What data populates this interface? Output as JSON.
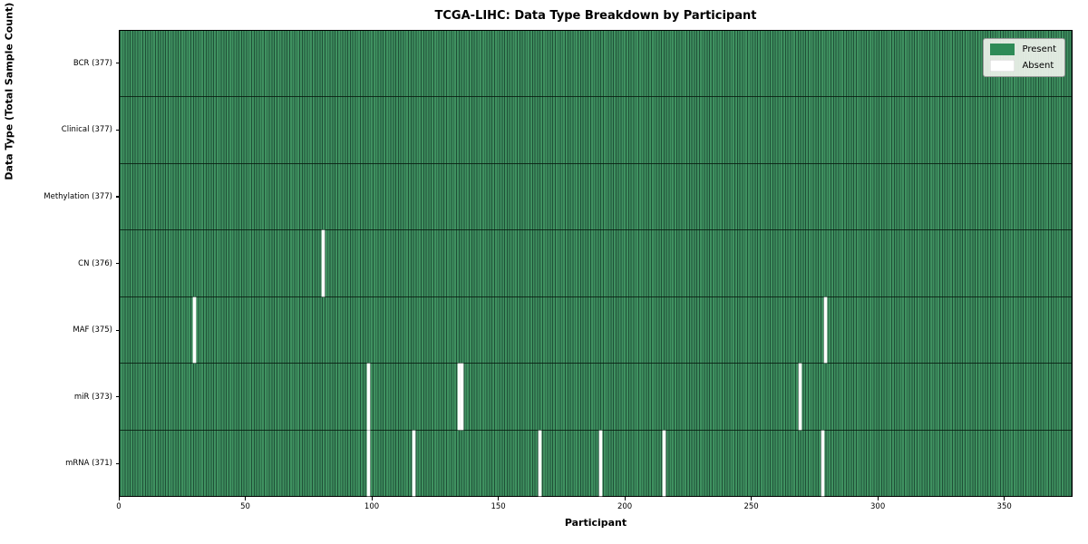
{
  "title": "TCGA-LIHC: Data Type Breakdown by Participant",
  "xlabel": "Participant",
  "ylabel": "Data Type (Total Sample Count)",
  "legend": {
    "present_label": "Present",
    "absent_label": "Absent"
  },
  "colors": {
    "present": "#2e8b57",
    "present_fill": "#3f9160",
    "cell_edge": "#1f5037",
    "row_divider": "#0a1c10",
    "absent": "#ffffff",
    "frame": "#000000",
    "legend_bg": "#eef2ec",
    "legend_border": "#9a9a9a"
  },
  "chart_data": {
    "type": "heatmap",
    "title": "TCGA-LIHC: Data Type Breakdown by Participant",
    "xlabel": "Participant",
    "ylabel": "Data Type (Total Sample Count)",
    "n_participants": 377,
    "x_range": [
      0,
      377
    ],
    "x_ticks": [
      0,
      50,
      100,
      150,
      200,
      250,
      300,
      350
    ],
    "grid": false,
    "legend_position": "upper right",
    "legend": [
      {
        "label": "Present",
        "color": "#2e8b57"
      },
      {
        "label": "Absent",
        "color": "#ffffff"
      }
    ],
    "rows": [
      {
        "data_type": "bcr",
        "label": "BCR (377)",
        "present_count": 377,
        "absent_count": 0,
        "absent_participants": []
      },
      {
        "data_type": "clinical",
        "label": "Clinical (377)",
        "present_count": 377,
        "absent_count": 0,
        "absent_participants": []
      },
      {
        "data_type": "methylation",
        "label": "Methylation (377)",
        "present_count": 377,
        "absent_count": 0,
        "absent_participants": []
      },
      {
        "data_type": "cn",
        "label": "CN (376)",
        "present_count": 376,
        "absent_count": 1,
        "absent_participants": [
          80
        ]
      },
      {
        "data_type": "maf",
        "label": "MAF (375)",
        "present_count": 375,
        "absent_count": 2,
        "absent_participants": [
          29,
          279
        ]
      },
      {
        "data_type": "mir",
        "label": "miR (373)",
        "present_count": 373,
        "absent_count": 4,
        "absent_participants": [
          98,
          134,
          135,
          269
        ]
      },
      {
        "data_type": "mrna",
        "label": "mRNA (371)",
        "present_count": 371,
        "absent_count": 6,
        "absent_participants": [
          98,
          116,
          166,
          190,
          215,
          278
        ]
      }
    ]
  }
}
